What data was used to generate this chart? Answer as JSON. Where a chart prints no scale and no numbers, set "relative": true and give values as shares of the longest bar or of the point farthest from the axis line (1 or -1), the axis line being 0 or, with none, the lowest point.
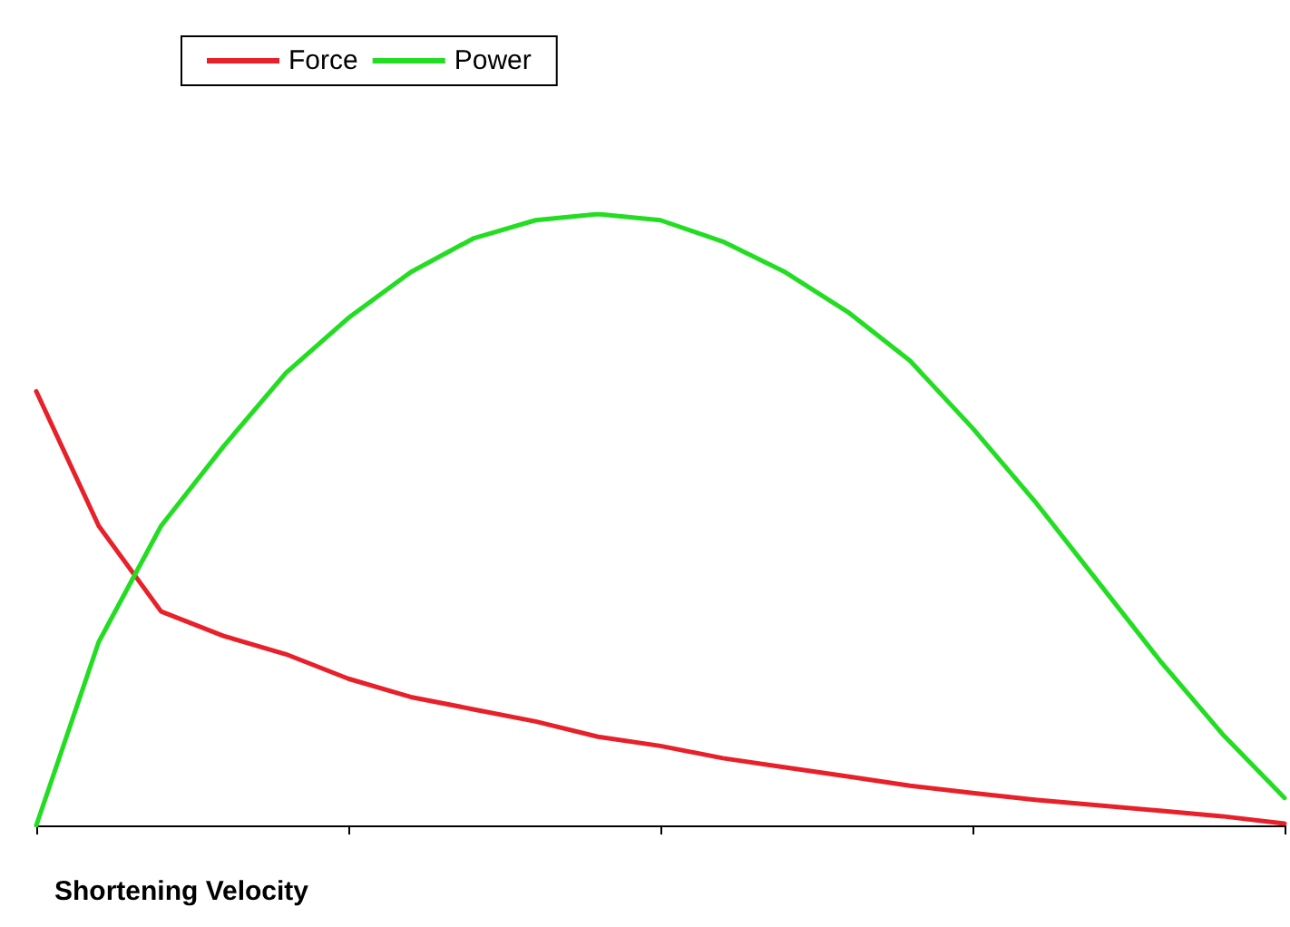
{
  "chart_data": {
    "type": "line",
    "relative": true,
    "xlabel": "Shortening Velocity",
    "categories": [
      null,
      null,
      null,
      null,
      null,
      null,
      null,
      null,
      null,
      null,
      null,
      null,
      null,
      null,
      null,
      null,
      null,
      null,
      null,
      null,
      null
    ],
    "series": [
      {
        "name": "Force",
        "color": "#e8202a",
        "values": [
          0.71,
          0.49,
          0.35,
          0.31,
          0.28,
          0.24,
          0.21,
          0.19,
          0.17,
          0.145,
          0.13,
          0.11,
          0.095,
          0.08,
          0.065,
          0.053,
          0.042,
          0.033,
          0.024,
          0.015,
          0.003
        ]
      },
      {
        "name": "Power",
        "color": "#22dd22",
        "values": [
          0,
          0.3,
          0.49,
          0.62,
          0.74,
          0.83,
          0.905,
          0.96,
          0.99,
          1,
          0.99,
          0.955,
          0.905,
          0.84,
          0.76,
          0.65,
          0.53,
          0.4,
          0.27,
          0.15,
          0.045
        ]
      }
    ],
    "legend": "top",
    "marker": "none",
    "line_style": "solid",
    "grid": false
  }
}
